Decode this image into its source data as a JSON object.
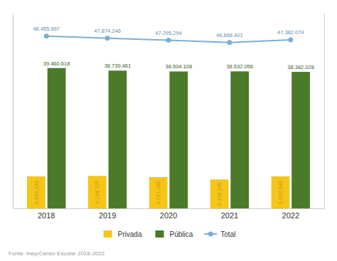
{
  "chart_data": {
    "type": "bar",
    "categories": [
      "2018",
      "2019",
      "2020",
      "2021",
      "2022"
    ],
    "series": [
      {
        "name": "Privada",
        "color": "#F5C518",
        "values": [
          8995249,
          9134785,
          8791186,
          8136345,
          9000046
        ],
        "value_labels": [
          "8.995.249",
          "9.134.785",
          "8.791.186",
          "8.136.345",
          "9.000.046"
        ]
      },
      {
        "name": "Pública",
        "color": "#4B7A2A",
        "values": [
          39460618,
          38739461,
          38504108,
          38532056,
          38382028
        ],
        "value_labels": [
          "39.460.618",
          "38.739.461",
          "38.504.108",
          "38.532.056",
          "38.382.028"
        ]
      },
      {
        "name": "Total",
        "type": "line",
        "axis": "y2",
        "color": "#7BAFD4",
        "marker": "circle",
        "values": [
          48455867,
          47874246,
          47295294,
          46668401,
          47382074
        ],
        "value_labels": [
          "48.455.867",
          "47.874.246",
          "47.295.294",
          "46.668.401",
          "47.382.074"
        ]
      }
    ],
    "ylim": [
      0,
      55000000
    ],
    "y2lim": [
      0,
      55000000
    ],
    "data_labels": true,
    "tick_labels": "x",
    "legend": "bottom",
    "annotations": [
      "Fonte: Inep/Censo Escolar 2018-2022"
    ]
  }
}
